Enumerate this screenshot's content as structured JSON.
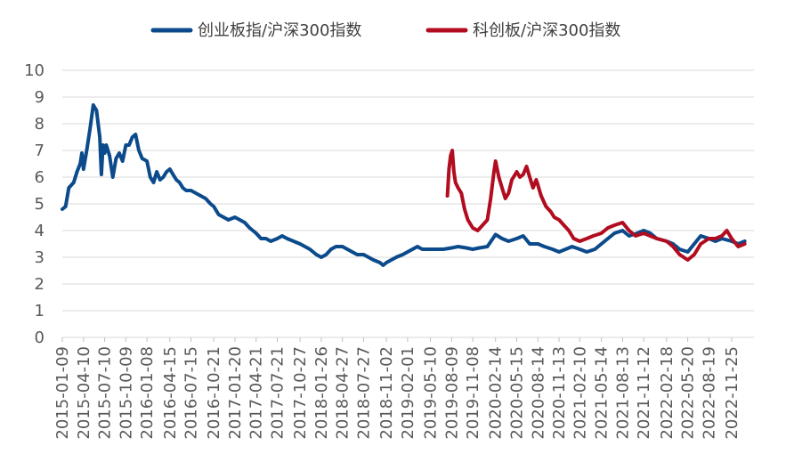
{
  "chart_data": {
    "type": "line",
    "title": "",
    "xlabel": "",
    "ylabel": "",
    "ylim": [
      0,
      10
    ],
    "yticks": [
      0,
      1,
      2,
      3,
      4,
      5,
      6,
      7,
      8,
      9,
      10
    ],
    "grid": "horizontal",
    "legend": "top",
    "x_tick_labels": [
      "2015-01-09",
      "2015-04-10",
      "2015-07-10",
      "2015-10-09",
      "2016-01-08",
      "2016-04-15",
      "2016-07-15",
      "2016-10-21",
      "2017-01-20",
      "2017-04-21",
      "2017-07-21",
      "2017-10-27",
      "2018-01-26",
      "2018-04-27",
      "2018-07-27",
      "2018-11-02",
      "2019-02-01",
      "2019-05-10",
      "2019-08-09",
      "2019-11-08",
      "2020-02-14",
      "2020-05-15",
      "2020-08-14",
      "2020-11-13",
      "2021-02-10",
      "2021-05-14",
      "2021-08-13",
      "2021-11-12",
      "2022-02-18",
      "2022-05-20",
      "2022-08-19",
      "2022-11-25"
    ],
    "series": [
      {
        "name": "创业板指/沪深300指数",
        "color": "#0b4a8b",
        "points": [
          [
            "2015-01-09",
            4.8
          ],
          [
            "2015-01-23",
            4.9
          ],
          [
            "2015-02-06",
            5.6
          ],
          [
            "2015-02-27",
            5.8
          ],
          [
            "2015-03-13",
            6.2
          ],
          [
            "2015-03-27",
            6.5
          ],
          [
            "2015-04-03",
            6.9
          ],
          [
            "2015-04-10",
            6.3
          ],
          [
            "2015-04-24",
            7.0
          ],
          [
            "2015-05-08",
            7.8
          ],
          [
            "2015-05-22",
            8.7
          ],
          [
            "2015-06-05",
            8.5
          ],
          [
            "2015-06-19",
            7.5
          ],
          [
            "2015-06-26",
            6.1
          ],
          [
            "2015-07-03",
            7.2
          ],
          [
            "2015-07-10",
            6.9
          ],
          [
            "2015-07-17",
            7.2
          ],
          [
            "2015-07-31",
            6.8
          ],
          [
            "2015-08-14",
            6.0
          ],
          [
            "2015-08-28",
            6.7
          ],
          [
            "2015-09-11",
            6.9
          ],
          [
            "2015-09-25",
            6.6
          ],
          [
            "2015-10-09",
            7.2
          ],
          [
            "2015-10-23",
            7.2
          ],
          [
            "2015-11-06",
            7.5
          ],
          [
            "2015-11-20",
            7.6
          ],
          [
            "2015-12-04",
            7.0
          ],
          [
            "2015-12-18",
            6.7
          ],
          [
            "2016-01-08",
            6.6
          ],
          [
            "2016-01-22",
            6.0
          ],
          [
            "2016-02-05",
            5.8
          ],
          [
            "2016-02-19",
            6.2
          ],
          [
            "2016-03-04",
            5.9
          ],
          [
            "2016-03-18",
            6.0
          ],
          [
            "2016-04-01",
            6.2
          ],
          [
            "2016-04-15",
            6.3
          ],
          [
            "2016-04-29",
            6.1
          ],
          [
            "2016-05-13",
            5.9
          ],
          [
            "2016-05-27",
            5.8
          ],
          [
            "2016-06-10",
            5.6
          ],
          [
            "2016-06-24",
            5.5
          ],
          [
            "2016-07-15",
            5.5
          ],
          [
            "2016-08-05",
            5.4
          ],
          [
            "2016-08-26",
            5.3
          ],
          [
            "2016-09-16",
            5.2
          ],
          [
            "2016-10-07",
            5.0
          ],
          [
            "2016-10-21",
            4.9
          ],
          [
            "2016-11-11",
            4.6
          ],
          [
            "2016-12-02",
            4.5
          ],
          [
            "2016-12-23",
            4.4
          ],
          [
            "2017-01-20",
            4.5
          ],
          [
            "2017-02-10",
            4.4
          ],
          [
            "2017-03-03",
            4.3
          ],
          [
            "2017-03-24",
            4.1
          ],
          [
            "2017-04-21",
            3.9
          ],
          [
            "2017-05-12",
            3.7
          ],
          [
            "2017-06-02",
            3.7
          ],
          [
            "2017-06-23",
            3.6
          ],
          [
            "2017-07-21",
            3.7
          ],
          [
            "2017-08-11",
            3.8
          ],
          [
            "2017-09-01",
            3.7
          ],
          [
            "2017-09-29",
            3.6
          ],
          [
            "2017-10-27",
            3.5
          ],
          [
            "2017-11-17",
            3.4
          ],
          [
            "2017-12-08",
            3.3
          ],
          [
            "2018-01-05",
            3.1
          ],
          [
            "2018-01-26",
            3.0
          ],
          [
            "2018-02-16",
            3.1
          ],
          [
            "2018-03-09",
            3.3
          ],
          [
            "2018-03-30",
            3.4
          ],
          [
            "2018-04-27",
            3.4
          ],
          [
            "2018-05-18",
            3.3
          ],
          [
            "2018-06-08",
            3.2
          ],
          [
            "2018-06-29",
            3.1
          ],
          [
            "2018-07-27",
            3.1
          ],
          [
            "2018-08-17",
            3.0
          ],
          [
            "2018-09-07",
            2.9
          ],
          [
            "2018-10-05",
            2.8
          ],
          [
            "2018-10-19",
            2.7
          ],
          [
            "2018-11-02",
            2.8
          ],
          [
            "2018-11-23",
            2.9
          ],
          [
            "2018-12-14",
            3.0
          ],
          [
            "2019-01-11",
            3.1
          ],
          [
            "2019-02-01",
            3.2
          ],
          [
            "2019-02-22",
            3.3
          ],
          [
            "2019-03-15",
            3.4
          ],
          [
            "2019-04-05",
            3.3
          ],
          [
            "2019-04-26",
            3.3
          ],
          [
            "2019-05-10",
            3.3
          ],
          [
            "2019-06-07",
            3.3
          ],
          [
            "2019-07-05",
            3.3
          ],
          [
            "2019-08-09",
            3.35
          ],
          [
            "2019-09-06",
            3.4
          ],
          [
            "2019-10-11",
            3.35
          ],
          [
            "2019-11-08",
            3.3
          ],
          [
            "2019-12-06",
            3.35
          ],
          [
            "2020-01-10",
            3.4
          ],
          [
            "2020-02-14",
            3.85
          ],
          [
            "2020-03-13",
            3.7
          ],
          [
            "2020-04-10",
            3.6
          ],
          [
            "2020-05-15",
            3.7
          ],
          [
            "2020-06-12",
            3.8
          ],
          [
            "2020-07-10",
            3.5
          ],
          [
            "2020-08-14",
            3.5
          ],
          [
            "2020-09-11",
            3.4
          ],
          [
            "2020-10-16",
            3.3
          ],
          [
            "2020-11-13",
            3.2
          ],
          [
            "2020-12-11",
            3.3
          ],
          [
            "2021-01-08",
            3.4
          ],
          [
            "2021-02-10",
            3.3
          ],
          [
            "2021-03-12",
            3.2
          ],
          [
            "2021-04-16",
            3.3
          ],
          [
            "2021-05-14",
            3.5
          ],
          [
            "2021-06-11",
            3.7
          ],
          [
            "2021-07-09",
            3.9
          ],
          [
            "2021-08-13",
            4.0
          ],
          [
            "2021-09-10",
            3.8
          ],
          [
            "2021-10-15",
            3.9
          ],
          [
            "2021-11-12",
            4.0
          ],
          [
            "2021-12-10",
            3.9
          ],
          [
            "2022-01-07",
            3.7
          ],
          [
            "2022-02-18",
            3.6
          ],
          [
            "2022-03-18",
            3.5
          ],
          [
            "2022-04-15",
            3.3
          ],
          [
            "2022-05-20",
            3.2
          ],
          [
            "2022-06-17",
            3.5
          ],
          [
            "2022-07-15",
            3.8
          ],
          [
            "2022-08-19",
            3.7
          ],
          [
            "2022-09-16",
            3.6
          ],
          [
            "2022-10-14",
            3.7
          ],
          [
            "2022-11-25",
            3.6
          ],
          [
            "2022-12-23",
            3.5
          ],
          [
            "2023-01-20",
            3.6
          ]
        ]
      },
      {
        "name": "科创板/沪深300指数",
        "color": "#b10c1f",
        "points": [
          [
            "2019-07-22",
            5.3
          ],
          [
            "2019-07-29",
            6.3
          ],
          [
            "2019-08-05",
            6.8
          ],
          [
            "2019-08-12",
            7.0
          ],
          [
            "2019-08-19",
            6.2
          ],
          [
            "2019-08-26",
            5.8
          ],
          [
            "2019-09-06",
            5.6
          ],
          [
            "2019-09-20",
            5.4
          ],
          [
            "2019-10-04",
            4.8
          ],
          [
            "2019-10-18",
            4.4
          ],
          [
            "2019-11-08",
            4.1
          ],
          [
            "2019-11-29",
            4.0
          ],
          [
            "2019-12-20",
            4.2
          ],
          [
            "2020-01-10",
            4.4
          ],
          [
            "2020-01-24",
            5.2
          ],
          [
            "2020-02-07",
            6.2
          ],
          [
            "2020-02-14",
            6.6
          ],
          [
            "2020-02-28",
            6.0
          ],
          [
            "2020-03-13",
            5.6
          ],
          [
            "2020-03-27",
            5.2
          ],
          [
            "2020-04-10",
            5.4
          ],
          [
            "2020-04-24",
            5.9
          ],
          [
            "2020-05-08",
            6.1
          ],
          [
            "2020-05-15",
            6.2
          ],
          [
            "2020-05-29",
            6.0
          ],
          [
            "2020-06-12",
            6.1
          ],
          [
            "2020-06-26",
            6.4
          ],
          [
            "2020-07-10",
            6.0
          ],
          [
            "2020-07-24",
            5.6
          ],
          [
            "2020-08-07",
            5.9
          ],
          [
            "2020-08-14",
            5.7
          ],
          [
            "2020-08-28",
            5.3
          ],
          [
            "2020-09-18",
            4.9
          ],
          [
            "2020-10-09",
            4.7
          ],
          [
            "2020-10-23",
            4.5
          ],
          [
            "2020-11-13",
            4.4
          ],
          [
            "2020-12-04",
            4.2
          ],
          [
            "2020-12-25",
            4.0
          ],
          [
            "2021-01-15",
            3.7
          ],
          [
            "2021-02-10",
            3.6
          ],
          [
            "2021-03-12",
            3.7
          ],
          [
            "2021-04-09",
            3.8
          ],
          [
            "2021-05-14",
            3.9
          ],
          [
            "2021-06-11",
            4.1
          ],
          [
            "2021-07-09",
            4.2
          ],
          [
            "2021-08-13",
            4.3
          ],
          [
            "2021-09-10",
            4.0
          ],
          [
            "2021-10-08",
            3.8
          ],
          [
            "2021-11-12",
            3.9
          ],
          [
            "2021-12-10",
            3.8
          ],
          [
            "2022-01-07",
            3.7
          ],
          [
            "2022-02-18",
            3.6
          ],
          [
            "2022-03-18",
            3.4
          ],
          [
            "2022-04-15",
            3.1
          ],
          [
            "2022-05-20",
            2.9
          ],
          [
            "2022-06-17",
            3.1
          ],
          [
            "2022-07-15",
            3.5
          ],
          [
            "2022-08-19",
            3.7
          ],
          [
            "2022-09-16",
            3.7
          ],
          [
            "2022-10-14",
            3.8
          ],
          [
            "2022-11-04",
            4.0
          ],
          [
            "2022-11-25",
            3.7
          ],
          [
            "2022-12-23",
            3.4
          ],
          [
            "2023-01-20",
            3.5
          ]
        ]
      }
    ]
  }
}
